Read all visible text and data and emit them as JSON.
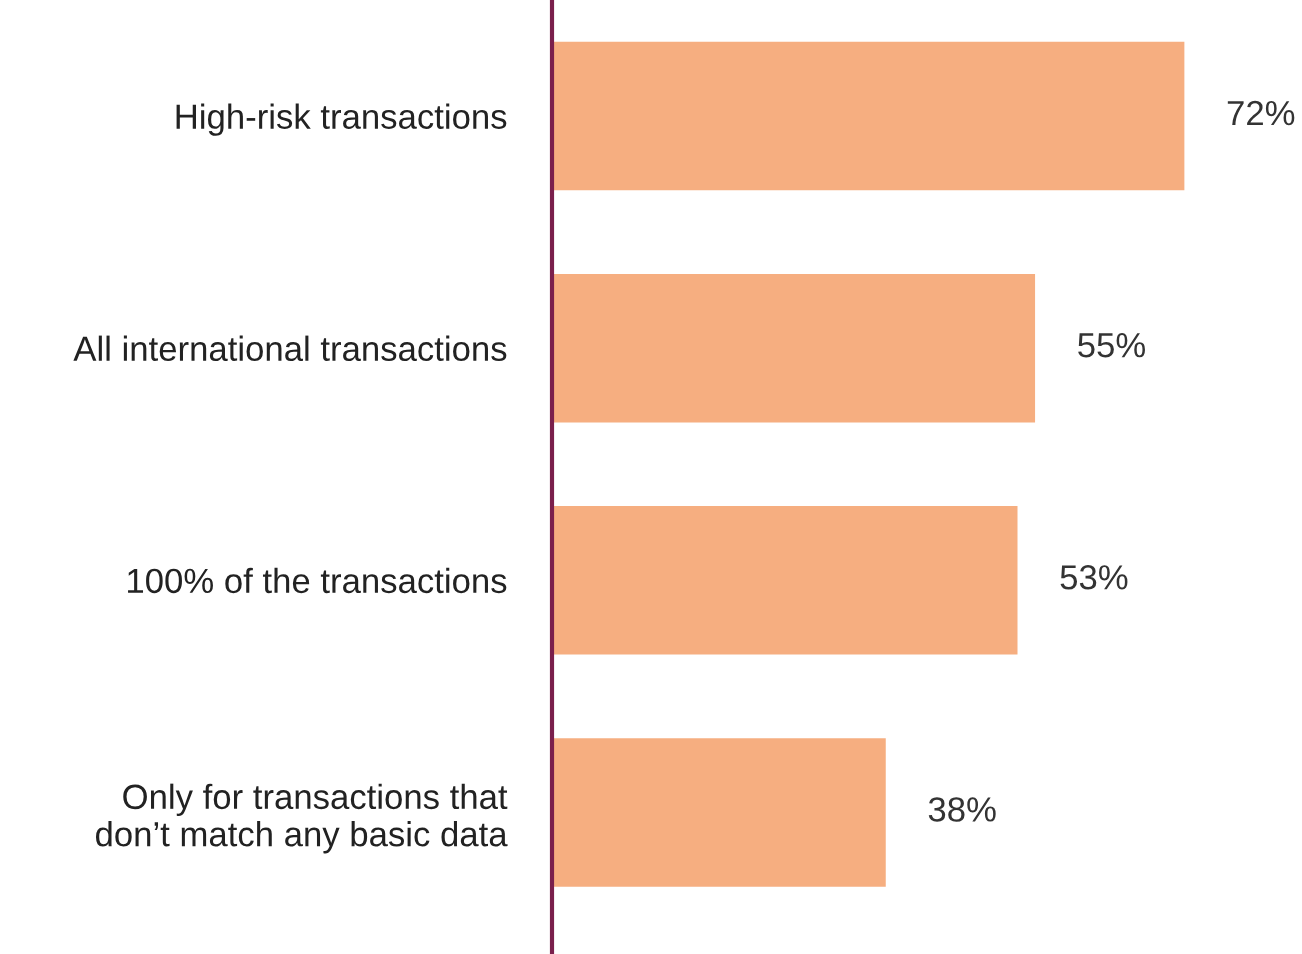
{
  "chart_data": {
    "type": "bar",
    "orientation": "horizontal",
    "categories": [
      "High-risk transactions",
      "All international transactions",
      "100% of the transactions",
      "Only for transactions that\ndon’t match any basic data"
    ],
    "values": [
      72,
      55,
      53,
      38
    ],
    "value_labels": [
      "72%",
      "55%",
      "53%",
      "38%"
    ],
    "color": "#f6ae80",
    "tick_labels": "y",
    "grid": false,
    "legend": false
  }
}
